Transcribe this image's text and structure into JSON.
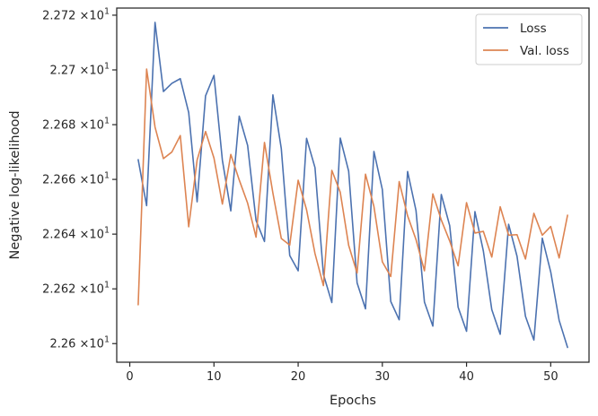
{
  "chart_data": {
    "type": "line",
    "xlabel": "Epochs",
    "ylabel": "Negative log-likelihood",
    "xlim": [
      -1.55,
      54.55
    ],
    "ylim": [
      22.5932,
      22.7226
    ],
    "x_ticks": [
      0,
      10,
      20,
      30,
      40,
      50
    ],
    "y_ticks": [
      {
        "value": 22.6,
        "mantissa": "2.26",
        "times": "×10",
        "exponent": "1"
      },
      {
        "value": 22.62,
        "mantissa": "2.262",
        "times": "×10",
        "exponent": "1"
      },
      {
        "value": 22.64,
        "mantissa": "2.264",
        "times": "×10",
        "exponent": "1"
      },
      {
        "value": 22.66,
        "mantissa": "2.266",
        "times": "×10",
        "exponent": "1"
      },
      {
        "value": 22.68,
        "mantissa": "2.268",
        "times": "×10",
        "exponent": "1"
      },
      {
        "value": 22.7,
        "mantissa": "2.27",
        "times": "×10",
        "exponent": "1"
      },
      {
        "value": 22.72,
        "mantissa": "2.272",
        "times": "×10",
        "exponent": "1"
      }
    ],
    "grid": false,
    "legend_position": "top-right",
    "x": [
      1,
      2,
      3,
      4,
      5,
      6,
      7,
      8,
      9,
      10,
      11,
      12,
      13,
      14,
      15,
      16,
      17,
      18,
      19,
      20,
      21,
      22,
      23,
      24,
      25,
      26,
      27,
      28,
      29,
      30,
      31,
      32,
      33,
      34,
      35,
      36,
      37,
      38,
      39,
      40,
      41,
      42,
      43,
      44,
      45,
      46,
      47,
      48,
      49,
      50,
      51,
      52
    ],
    "series": [
      {
        "name": "Loss",
        "color": "#4c72b0",
        "values": [
          22.6672,
          22.6504,
          22.7174,
          22.6921,
          22.6951,
          22.6968,
          22.6844,
          22.6518,
          22.6905,
          22.698,
          22.667,
          22.6485,
          22.6831,
          22.6724,
          22.645,
          22.6373,
          22.6909,
          22.6712,
          22.6322,
          22.6266,
          22.675,
          22.6643,
          22.6253,
          22.615,
          22.6751,
          22.663,
          22.6222,
          22.6127,
          22.6702,
          22.6563,
          22.6154,
          22.6087,
          22.6629,
          22.6486,
          22.6152,
          22.6064,
          22.6545,
          22.6431,
          22.6133,
          22.6045,
          22.6482,
          22.6338,
          22.6124,
          22.6034,
          22.6436,
          22.6319,
          22.61,
          22.6013,
          22.6385,
          22.6262,
          22.6085,
          22.5986
        ]
      },
      {
        "name": "Val. loss",
        "color": "#dd8452",
        "values": [
          22.6142,
          22.7003,
          22.6791,
          22.6676,
          22.67,
          22.676,
          22.6427,
          22.6671,
          22.6775,
          22.6678,
          22.651,
          22.6691,
          22.6598,
          22.6513,
          22.6389,
          22.6735,
          22.655,
          22.6384,
          22.636,
          22.6597,
          22.6489,
          22.6329,
          22.6212,
          22.6633,
          22.6553,
          22.6359,
          22.6258,
          22.6619,
          22.6501,
          22.6299,
          22.6245,
          22.6592,
          22.6467,
          22.638,
          22.6266,
          22.6547,
          22.6452,
          22.6375,
          22.6284,
          22.6515,
          22.6404,
          22.641,
          22.6316,
          22.65,
          22.6396,
          22.6398,
          22.6309,
          22.6476,
          22.6396,
          22.6428,
          22.6313,
          22.6469
        ]
      }
    ]
  }
}
